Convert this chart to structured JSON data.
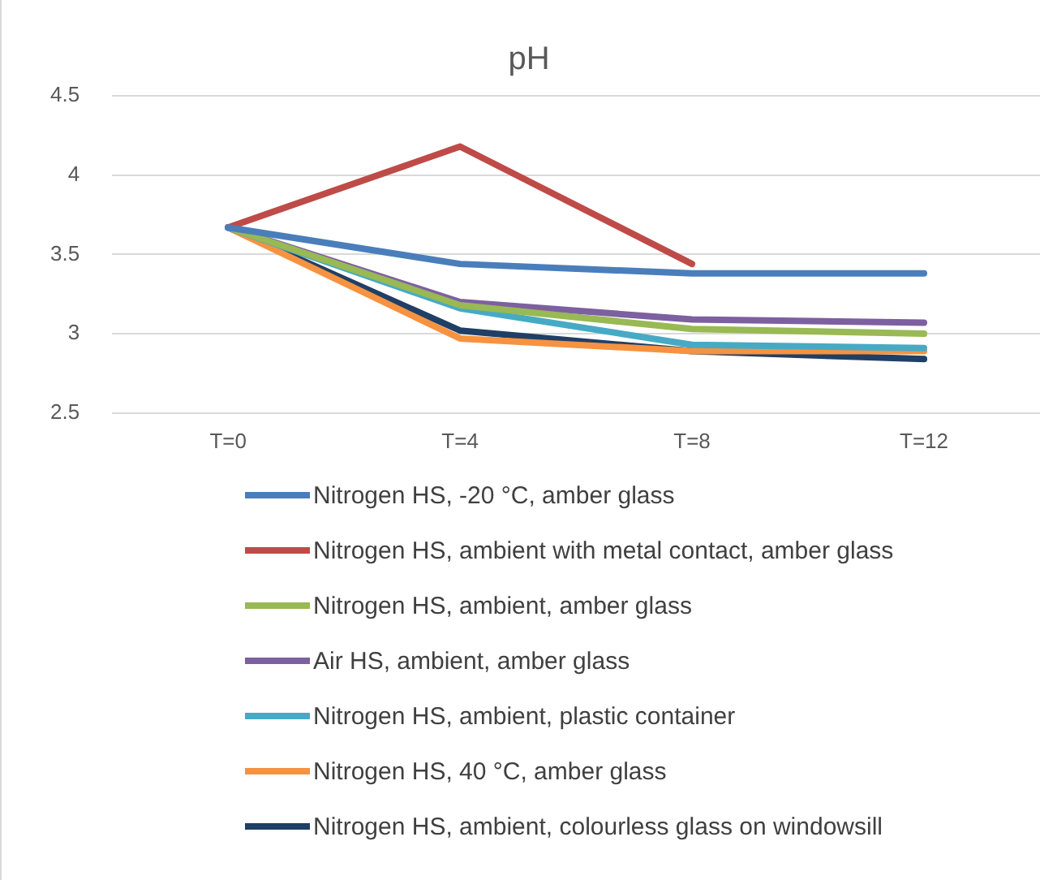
{
  "chart_data": {
    "type": "line",
    "title": "pH",
    "categories": [
      "T=0",
      "T=4",
      "T=8",
      "T=12"
    ],
    "ylim": [
      2.5,
      4.5
    ],
    "yticks": [
      2.5,
      3,
      3.5,
      4,
      4.5
    ],
    "grid": "y",
    "legend": "bottom",
    "marker": "none",
    "series": [
      {
        "name": "Nitrogen HS, -20 °C, amber glass",
        "color": "#4a7ebb",
        "values": [
          3.67,
          3.44,
          3.38,
          3.38
        ]
      },
      {
        "name": "Nitrogen HS, ambient with metal contact, amber glass",
        "color": "#be4b48",
        "values": [
          3.67,
          4.18,
          3.44,
          null
        ]
      },
      {
        "name": "Nitrogen HS, ambient, amber glass",
        "color": "#98b954",
        "values": [
          3.67,
          3.18,
          3.03,
          3.0
        ]
      },
      {
        "name": "Air HS, ambient, amber glass",
        "color": "#7d60a0",
        "values": [
          3.67,
          3.2,
          3.09,
          3.07
        ]
      },
      {
        "name": "Nitrogen HS, ambient, plastic container",
        "color": "#46aac5",
        "values": [
          3.67,
          3.16,
          2.93,
          2.91
        ]
      },
      {
        "name": "Nitrogen HS, 40 °C, amber glass",
        "color": "#f69240",
        "values": [
          3.67,
          2.97,
          2.89,
          2.89
        ]
      },
      {
        "name": "Nitrogen HS, ambient, colourless glass on windowsill",
        "color": "#1f3f66",
        "values": [
          3.67,
          3.02,
          2.89,
          2.84
        ]
      }
    ]
  }
}
